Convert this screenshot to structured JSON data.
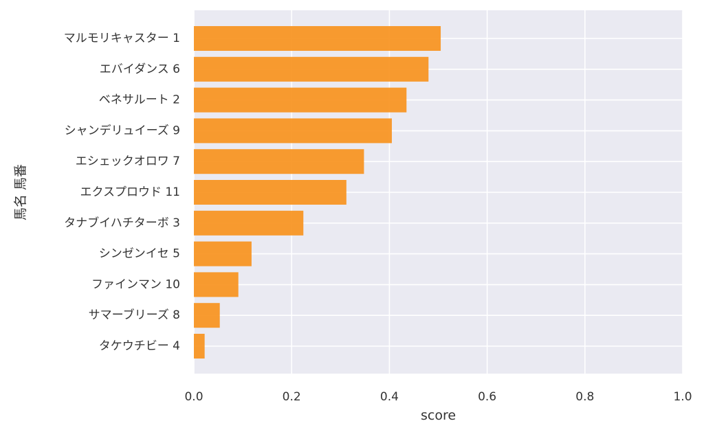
{
  "chart_data": {
    "type": "bar",
    "orientation": "horizontal",
    "categories": [
      "マルモリキャスター 1",
      "エバイダンス 6",
      "ベネサルート 2",
      "シャンデリュイーズ 9",
      "エシェックオロワ 7",
      "エクスプロウド 11",
      "タナブイハチターボ 3",
      "シンゼンイセ 5",
      "ファインマン 10",
      "サマーブリーズ 8",
      "タケウチビー 4"
    ],
    "values": [
      0.505,
      0.48,
      0.435,
      0.405,
      0.348,
      0.312,
      0.224,
      0.118,
      0.091,
      0.053,
      0.022
    ],
    "xlabel": "score",
    "ylabel": "馬名 馬番",
    "xlim": [
      0.0,
      1.0
    ],
    "xticks": [
      "0.0",
      "0.2",
      "0.4",
      "0.6",
      "0.8",
      "1.0"
    ],
    "grid": true,
    "bar_color": "#f7931e",
    "plot_background": "#eaeaf2"
  }
}
